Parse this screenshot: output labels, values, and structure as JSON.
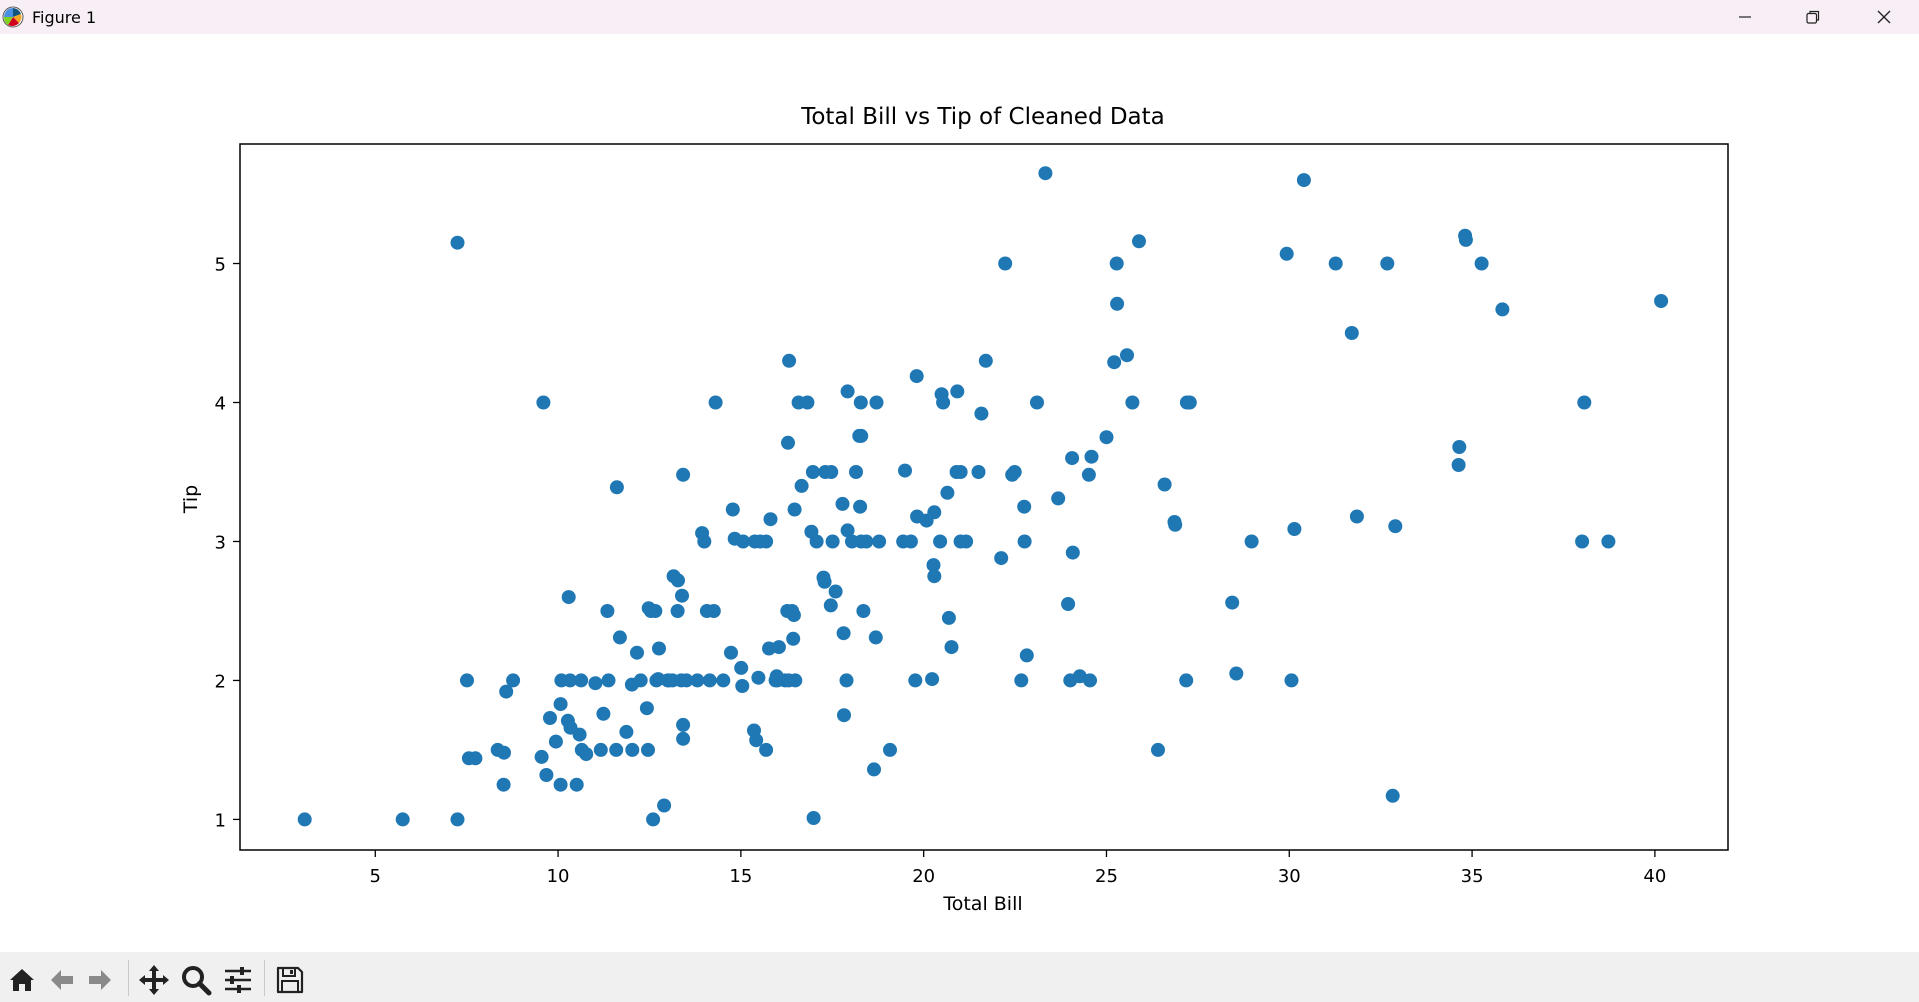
{
  "window": {
    "title": "Figure 1",
    "controls": [
      "minimize",
      "maximize",
      "close"
    ]
  },
  "toolbar": {
    "buttons": [
      "home-icon",
      "back-arrow-icon",
      "forward-arrow-icon",
      "pan-icon",
      "zoom-icon",
      "configure-subplots-icon",
      "save-icon"
    ]
  },
  "colors": {
    "marker": "#1f77b4",
    "titlebar": "#f7eff5",
    "toolbar": "#f0f0f0"
  },
  "chart_data": {
    "type": "scatter",
    "title": "Total Bill vs Tip of Cleaned Data",
    "xlabel": "Total Bill",
    "ylabel": "Tip",
    "xlim": [
      1.3,
      42.0
    ],
    "ylim": [
      0.78,
      5.86
    ],
    "xticks": [
      5,
      10,
      15,
      20,
      25,
      30,
      35,
      40
    ],
    "xtick_labels": [
      "5",
      "10",
      "15",
      "20",
      "25",
      "30",
      "35",
      "40"
    ],
    "yticks": [
      1,
      2,
      3,
      4,
      5
    ],
    "ytick_labels": [
      "1",
      "2",
      "3",
      "4",
      "5"
    ],
    "grid": false,
    "series": [
      {
        "points": [
          [
            3.07,
            1.0
          ],
          [
            5.75,
            1.0
          ],
          [
            7.25,
            1.0
          ],
          [
            7.25,
            5.15
          ],
          [
            7.51,
            2.0
          ],
          [
            7.56,
            1.44
          ],
          [
            7.74,
            1.44
          ],
          [
            8.35,
            1.5
          ],
          [
            8.51,
            1.25
          ],
          [
            8.52,
            1.48
          ],
          [
            8.58,
            1.92
          ],
          [
            8.77,
            2.0
          ],
          [
            9.55,
            1.45
          ],
          [
            9.6,
            4.0
          ],
          [
            9.68,
            1.32
          ],
          [
            9.78,
            1.73
          ],
          [
            9.94,
            1.56
          ],
          [
            10.07,
            1.83
          ],
          [
            10.07,
            1.25
          ],
          [
            10.09,
            2.0
          ],
          [
            10.27,
            1.71
          ],
          [
            10.29,
            2.6
          ],
          [
            10.33,
            2.0
          ],
          [
            10.34,
            1.66
          ],
          [
            10.51,
            1.25
          ],
          [
            10.59,
            1.61
          ],
          [
            10.63,
            2.0
          ],
          [
            10.65,
            1.5
          ],
          [
            10.77,
            1.47
          ],
          [
            11.02,
            1.98
          ],
          [
            11.17,
            1.5
          ],
          [
            11.24,
            1.76
          ],
          [
            11.35,
            2.5
          ],
          [
            11.38,
            2.0
          ],
          [
            11.59,
            1.5
          ],
          [
            11.61,
            3.39
          ],
          [
            11.69,
            2.31
          ],
          [
            11.87,
            1.63
          ],
          [
            12.02,
            1.97
          ],
          [
            12.03,
            1.5
          ],
          [
            12.16,
            2.2
          ],
          [
            12.26,
            2.0
          ],
          [
            12.43,
            1.8
          ],
          [
            12.46,
            1.5
          ],
          [
            12.48,
            2.52
          ],
          [
            12.54,
            2.5
          ],
          [
            12.6,
            1.0
          ],
          [
            12.66,
            2.5
          ],
          [
            12.69,
            2.0
          ],
          [
            12.74,
            2.01
          ],
          [
            12.76,
            2.23
          ],
          [
            12.9,
            1.1
          ],
          [
            13.0,
            2.0
          ],
          [
            13.03,
            2.0
          ],
          [
            13.13,
            2.0
          ],
          [
            13.16,
            2.75
          ],
          [
            13.27,
            2.5
          ],
          [
            13.28,
            2.72
          ],
          [
            13.37,
            2.0
          ],
          [
            13.39,
            2.61
          ],
          [
            13.42,
            1.58
          ],
          [
            13.42,
            3.48
          ],
          [
            13.42,
            1.68
          ],
          [
            13.51,
            2.0
          ],
          [
            13.81,
            2.0
          ],
          [
            13.94,
            3.06
          ],
          [
            14.0,
            3.0
          ],
          [
            14.07,
            2.5
          ],
          [
            14.15,
            2.0
          ],
          [
            14.26,
            2.5
          ],
          [
            14.31,
            4.0
          ],
          [
            14.52,
            2.0
          ],
          [
            14.73,
            2.2
          ],
          [
            14.78,
            3.23
          ],
          [
            14.83,
            3.02
          ],
          [
            15.01,
            2.09
          ],
          [
            15.04,
            1.96
          ],
          [
            15.06,
            3.0
          ],
          [
            15.36,
            1.64
          ],
          [
            15.38,
            3.0
          ],
          [
            15.42,
            1.57
          ],
          [
            15.48,
            2.02
          ],
          [
            15.53,
            3.0
          ],
          [
            15.69,
            1.5
          ],
          [
            15.69,
            3.0
          ],
          [
            15.77,
            2.23
          ],
          [
            15.81,
            3.16
          ],
          [
            15.95,
            2.0
          ],
          [
            15.98,
            2.03
          ],
          [
            16.0,
            2.0
          ],
          [
            16.04,
            2.24
          ],
          [
            16.21,
            2.0
          ],
          [
            16.27,
            2.5
          ],
          [
            16.29,
            3.71
          ],
          [
            16.31,
            2.0
          ],
          [
            16.32,
            4.3
          ],
          [
            16.4,
            2.5
          ],
          [
            16.43,
            2.3
          ],
          [
            16.45,
            2.47
          ],
          [
            16.47,
            3.23
          ],
          [
            16.49,
            2.0
          ],
          [
            16.58,
            4.0
          ],
          [
            16.66,
            3.4
          ],
          [
            16.82,
            4.0
          ],
          [
            16.93,
            3.07
          ],
          [
            16.97,
            3.5
          ],
          [
            16.99,
            1.01
          ],
          [
            17.07,
            3.0
          ],
          [
            17.26,
            2.74
          ],
          [
            17.29,
            2.71
          ],
          [
            17.31,
            3.5
          ],
          [
            17.46,
            2.54
          ],
          [
            17.47,
            3.5
          ],
          [
            17.51,
            3.0
          ],
          [
            17.59,
            2.64
          ],
          [
            17.78,
            3.27
          ],
          [
            17.81,
            2.34
          ],
          [
            17.82,
            1.75
          ],
          [
            17.89,
            2.0
          ],
          [
            17.92,
            4.08
          ],
          [
            17.92,
            3.08
          ],
          [
            18.04,
            3.0
          ],
          [
            18.15,
            3.5
          ],
          [
            18.24,
            3.76
          ],
          [
            18.26,
            3.25
          ],
          [
            18.28,
            4.0
          ],
          [
            18.29,
            3.76
          ],
          [
            18.29,
            3.0
          ],
          [
            18.35,
            2.5
          ],
          [
            18.43,
            3.0
          ],
          [
            18.64,
            1.36
          ],
          [
            18.69,
            2.31
          ],
          [
            18.71,
            4.0
          ],
          [
            18.78,
            3.0
          ],
          [
            19.08,
            1.5
          ],
          [
            19.44,
            3.0
          ],
          [
            19.49,
            3.51
          ],
          [
            19.65,
            3.0
          ],
          [
            19.77,
            2.0
          ],
          [
            19.81,
            4.19
          ],
          [
            19.82,
            3.18
          ],
          [
            20.08,
            3.15
          ],
          [
            20.23,
            2.01
          ],
          [
            20.27,
            2.83
          ],
          [
            20.29,
            2.75
          ],
          [
            20.29,
            3.21
          ],
          [
            20.45,
            3.0
          ],
          [
            20.49,
            4.06
          ],
          [
            20.53,
            4.0
          ],
          [
            20.65,
            3.35
          ],
          [
            20.69,
            2.45
          ],
          [
            20.76,
            2.24
          ],
          [
            20.9,
            3.5
          ],
          [
            20.92,
            4.08
          ],
          [
            21.01,
            3.5
          ],
          [
            21.01,
            3.0
          ],
          [
            21.16,
            3.0
          ],
          [
            21.5,
            3.5
          ],
          [
            21.58,
            3.92
          ],
          [
            21.7,
            4.3
          ],
          [
            22.12,
            2.88
          ],
          [
            22.23,
            5.0
          ],
          [
            22.42,
            3.48
          ],
          [
            22.49,
            3.5
          ],
          [
            22.67,
            2.0
          ],
          [
            22.75,
            3.25
          ],
          [
            22.76,
            3.0
          ],
          [
            22.82,
            2.18
          ],
          [
            23.1,
            4.0
          ],
          [
            23.33,
            5.65
          ],
          [
            23.68,
            3.31
          ],
          [
            23.95,
            2.55
          ],
          [
            24.01,
            2.0
          ],
          [
            24.06,
            3.6
          ],
          [
            24.08,
            2.92
          ],
          [
            24.27,
            2.03
          ],
          [
            24.52,
            3.48
          ],
          [
            24.55,
            2.0
          ],
          [
            24.59,
            3.61
          ],
          [
            25.0,
            3.75
          ],
          [
            25.21,
            4.29
          ],
          [
            25.28,
            5.0
          ],
          [
            25.29,
            4.71
          ],
          [
            25.56,
            4.34
          ],
          [
            25.71,
            4.0
          ],
          [
            25.89,
            5.16
          ],
          [
            26.41,
            1.5
          ],
          [
            26.59,
            3.41
          ],
          [
            26.86,
            3.14
          ],
          [
            26.88,
            3.12
          ],
          [
            27.18,
            2.0
          ],
          [
            27.2,
            4.0
          ],
          [
            27.28,
            4.0
          ],
          [
            28.44,
            2.56
          ],
          [
            28.55,
            2.05
          ],
          [
            28.97,
            3.0
          ],
          [
            29.93,
            5.07
          ],
          [
            30.06,
            2.0
          ],
          [
            30.14,
            3.09
          ],
          [
            30.4,
            5.6
          ],
          [
            31.27,
            5.0
          ],
          [
            31.71,
            4.5
          ],
          [
            31.85,
            3.18
          ],
          [
            32.68,
            5.0
          ],
          [
            32.83,
            1.17
          ],
          [
            32.9,
            3.11
          ],
          [
            34.63,
            3.55
          ],
          [
            34.65,
            3.68
          ],
          [
            34.81,
            5.2
          ],
          [
            34.83,
            5.17
          ],
          [
            35.26,
            5.0
          ],
          [
            35.83,
            4.67
          ],
          [
            38.01,
            3.0
          ],
          [
            38.07,
            4.0
          ],
          [
            38.73,
            3.0
          ],
          [
            40.17,
            4.73
          ]
        ]
      }
    ]
  }
}
